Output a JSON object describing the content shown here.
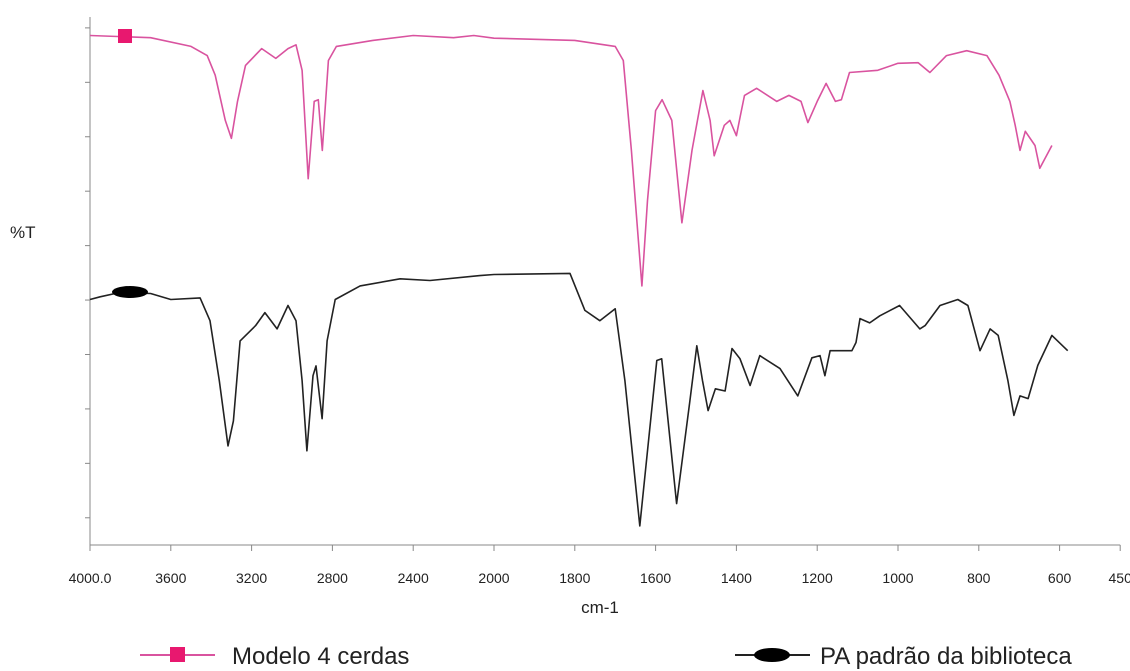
{
  "chart_data": {
    "type": "line",
    "x_label": "cm-1",
    "y_label": "%T",
    "xlim": [
      4000,
      450
    ],
    "xticks": [
      {
        "value": 4000,
        "label": "4000.0"
      },
      3600,
      3200,
      2800,
      2400,
      2000,
      1800,
      1600,
      1400,
      1200,
      1000,
      800,
      600,
      450
    ],
    "ylim": [
      -5,
      92
    ],
    "yticks": [
      0,
      10,
      20,
      30,
      40,
      50,
      60,
      70,
      80,
      90
    ],
    "series": [
      {
        "name": "Modelo 4 cerdas",
        "color": "#d9539f",
        "x": [
          4000,
          3700,
          3500,
          3420,
          3380,
          3330,
          3300,
          3270,
          3230,
          3150,
          3080,
          3020,
          2980,
          2950,
          2920,
          2890,
          2870,
          2850,
          2820,
          2780,
          2600,
          2400,
          2200,
          2100,
          2000,
          1800,
          1700,
          1680,
          1660,
          1634,
          1620,
          1600,
          1584,
          1560,
          1535,
          1510,
          1483,
          1465,
          1455,
          1430,
          1416,
          1400,
          1390,
          1380,
          1350,
          1300,
          1270,
          1240,
          1223,
          1200,
          1178,
          1155,
          1140,
          1120,
          1050,
          1000,
          950,
          921,
          880,
          830,
          780,
          750,
          723,
          710,
          698,
          685,
          661,
          649,
          619
        ],
        "values": [
          88.6,
          88.2,
          86.6,
          84.9,
          81.3,
          73.0,
          69.7,
          76.5,
          83.1,
          86.2,
          84.4,
          86.2,
          86.9,
          82.2,
          62.3,
          76.5,
          76.8,
          67.5,
          84.0,
          86.6,
          87.7,
          88.6,
          88.2,
          88.6,
          88.1,
          87.7,
          86.6,
          84.0,
          67.5,
          42.6,
          58.3,
          74.8,
          76.8,
          73.0,
          54.2,
          67.5,
          78.5,
          73.0,
          66.5,
          72.1,
          73.0,
          70.2,
          73.9,
          77.6,
          78.9,
          76.5,
          77.6,
          76.5,
          72.6,
          76.5,
          79.8,
          76.5,
          76.8,
          81.8,
          82.2,
          83.5,
          83.6,
          81.8,
          84.9,
          85.8,
          84.9,
          81.3,
          76.5,
          72.1,
          67.5,
          71.0,
          68.4,
          64.2,
          68.4
        ]
      },
      {
        "name": "PA padrão da biblioteca",
        "color": "#222222",
        "x": [
          4000,
          3950,
          3850,
          3700,
          3600,
          3455,
          3406,
          3360,
          3317,
          3290,
          3257,
          3180,
          3134,
          3074,
          3020,
          2980,
          2950,
          2926,
          2896,
          2881,
          2851,
          2826,
          2786,
          2663,
          2465,
          2317,
          2070,
          2000,
          1812,
          1775,
          1738,
          1700,
          1676,
          1639,
          1620,
          1597,
          1585,
          1548,
          1515,
          1498,
          1484,
          1470,
          1452,
          1428,
          1411,
          1391,
          1366,
          1342,
          1292,
          1248,
          1213,
          1193,
          1181,
          1168,
          1114,
          1104,
          1094,
          1070,
          1045,
          996,
          946,
          933,
          896,
          852,
          827,
          797,
          772,
          752,
          728,
          713,
          698,
          678,
          654,
          619,
          580
        ],
        "values": [
          40.1,
          40.6,
          41.4,
          41.2,
          40.1,
          40.4,
          36.2,
          25.2,
          13.2,
          17.8,
          32.5,
          35.3,
          37.7,
          34.7,
          39.0,
          36.2,
          25.2,
          12.3,
          26.1,
          27.9,
          18.2,
          32.5,
          40.1,
          42.6,
          43.9,
          43.6,
          44.5,
          44.7,
          44.9,
          38.1,
          36.2,
          38.4,
          25.2,
          -1.5,
          12.3,
          28.9,
          29.2,
          2.6,
          21.5,
          31.6,
          25.2,
          19.7,
          23.7,
          23.3,
          31.1,
          29.2,
          24.3,
          29.8,
          27.4,
          22.4,
          29.4,
          29.8,
          26.1,
          30.7,
          30.7,
          32.2,
          36.6,
          35.8,
          37.1,
          39.0,
          34.7,
          35.3,
          39.0,
          40.1,
          39.0,
          30.7,
          34.7,
          33.5,
          25.2,
          18.8,
          22.4,
          21.9,
          28.0,
          33.5,
          30.7
        ]
      }
    ]
  }
}
